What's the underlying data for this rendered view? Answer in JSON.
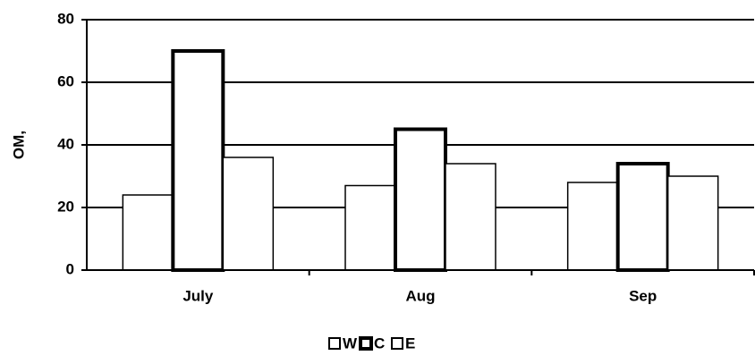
{
  "chart_data": {
    "type": "bar",
    "y_label": "OM,",
    "categories": [
      "July",
      "Aug",
      "Sep"
    ],
    "series": [
      {
        "name": "W",
        "color": "#ffffff",
        "values": [
          24,
          27,
          28
        ]
      },
      {
        "name": "C",
        "color": "#ffffff",
        "values": [
          70,
          45,
          34
        ]
      },
      {
        "name": "E",
        "color": "#ffffff",
        "values": [
          36,
          34,
          30
        ]
      }
    ],
    "ylim": [
      0,
      80
    ],
    "yticks": [
      0,
      20,
      40,
      60,
      80
    ],
    "grid": true,
    "legend": "bottom"
  }
}
